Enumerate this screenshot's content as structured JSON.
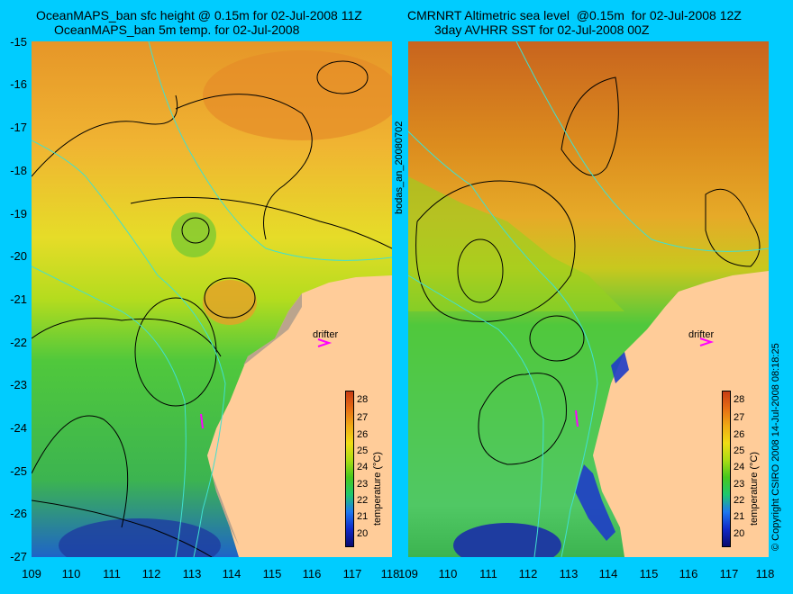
{
  "left_panel": {
    "title_line1": "OceanMAPS_ban sfc height @ 0.15m for 02-Jul-2008 11Z",
    "title_line2": "OceanMAPS_ban 5m temp. for 02-Jul-2008"
  },
  "right_panel": {
    "title_line1": "CMRNRT Altimetric sea level  @0.15m  for 02-Jul-2008 12Z",
    "title_line2": "3day AVHRR SST for 02-Jul-2008 00Z"
  },
  "center_label": "bodas_an_20080702",
  "copyright": "© Copyright CSIRO 2008  14-Jul-2008 08:18:25",
  "y_ticks": [
    "-15",
    "-16",
    "-17",
    "-18",
    "-19",
    "-20",
    "-21",
    "-22",
    "-23",
    "-24",
    "-25",
    "-26",
    "-27"
  ],
  "x_ticks": [
    "109",
    "110",
    "111",
    "112",
    "113",
    "114",
    "115",
    "116",
    "117",
    "118"
  ],
  "drifter_label": "drifter",
  "colorbar": {
    "title": "temperature (°C)",
    "ticks": [
      "28",
      "27",
      "26",
      "25",
      "24",
      "23",
      "22",
      "21",
      "20"
    ],
    "colors": [
      "#0a0a6e",
      "#1028c8",
      "#1e78f0",
      "#1ec86e",
      "#46c81e",
      "#aadc14",
      "#f0dc14",
      "#f0aa14",
      "#e66e14",
      "#c83c14"
    ]
  },
  "colors": {
    "land": "#ffcc99",
    "shelf_land": "#b4a08c",
    "contour_lines": "#000000",
    "bathymetry_lines": "#40e0d0",
    "drifter_marker": "#ff00ff",
    "background": "#00ccff"
  }
}
